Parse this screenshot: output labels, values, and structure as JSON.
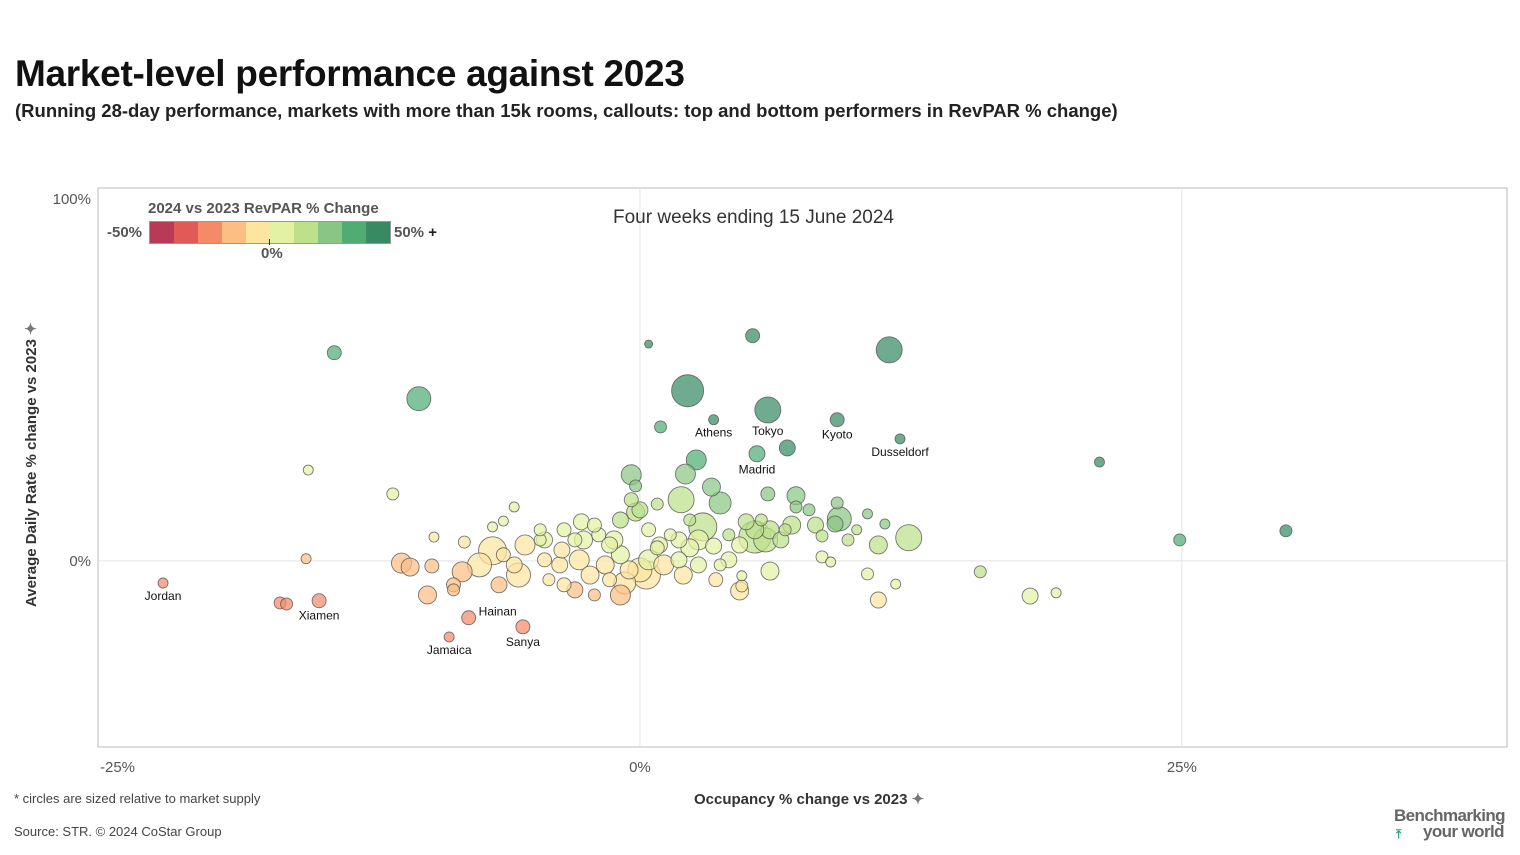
{
  "title": "Market-level performance against 2023",
  "subtitle": "(Running 28-day performance, markets with more than 15k rooms, callouts: top and bottom performers in RevPAR % change)",
  "footnote": "* circles are sized relative to market supply",
  "source": "Source: STR. © 2024 CoStar Group",
  "logo": {
    "line1": "Benchmarking",
    "line2": "your world"
  },
  "chart_data": {
    "type": "scatter",
    "panel_title": "Four weeks ending 15 June 2024",
    "xlabel": "Occupancy % change vs 2023",
    "ylabel": "Average Daily Rate % change vs 2023",
    "xlim": [
      -25,
      40
    ],
    "ylim": [
      -51.4,
      103
    ],
    "xticks": [
      {
        "v": -25,
        "label": "-25%"
      },
      {
        "v": 0,
        "label": "0%"
      },
      {
        "v": 25,
        "label": "25%"
      }
    ],
    "yticks": [
      {
        "v": 100,
        "label": "100%"
      },
      {
        "v": 0,
        "label": "0%"
      }
    ],
    "grid": true,
    "legend": {
      "title": "2024 vs 2023 RevPAR % Change",
      "min_label": "-50%",
      "max_label": "50%",
      "mid_label": "0%",
      "plus": "+",
      "placement": "top-left",
      "colors": [
        "#b93a57",
        "#e05a57",
        "#f48a68",
        "#fdbe84",
        "#fde5a0",
        "#e3f1a5",
        "#bde08a",
        "#8ac683",
        "#4fad74",
        "#378a62"
      ]
    },
    "point_fields": [
      "occupancy_change_pct",
      "adr_change_pct",
      "relative_supply"
    ],
    "labeled_points": [
      {
        "name": "Jordan",
        "x": -22.0,
        "y": -6.1,
        "s": 5
      },
      {
        "name": "Xiamen",
        "x": -14.8,
        "y": -11.0,
        "s": 7
      },
      {
        "name": "Hainan",
        "x": -7.9,
        "y": -15.7,
        "s": 7
      },
      {
        "name": "Jamaica",
        "x": -8.8,
        "y": -21.0,
        "s": 5
      },
      {
        "name": "Sanya",
        "x": -5.4,
        "y": -18.2,
        "s": 7
      },
      {
        "name": "Athens",
        "x": 3.4,
        "y": 39.0,
        "s": 5
      },
      {
        "name": "Tokyo",
        "x": 5.9,
        "y": 41.7,
        "s": 13
      },
      {
        "name": "Kyoto",
        "x": 9.1,
        "y": 39.0,
        "s": 7
      },
      {
        "name": "Dusseldorf",
        "x": 12.0,
        "y": 33.7,
        "s": 5
      },
      {
        "name": "Madrid",
        "x": 5.4,
        "y": 29.6,
        "s": 8
      }
    ],
    "points": [
      [
        -16.6,
        -11.6,
        6
      ],
      [
        -16.3,
        -11.9,
        6
      ],
      [
        -14.1,
        57.5,
        7
      ],
      [
        -10.2,
        44.8,
        12
      ],
      [
        -15.3,
        25.1,
        5
      ],
      [
        -11.4,
        18.5,
        6
      ],
      [
        -15.4,
        0.6,
        5
      ],
      [
        0.4,
        59.9,
        4
      ],
      [
        5.2,
        62.2,
        7
      ],
      [
        11.5,
        58.3,
        13
      ],
      [
        2.2,
        47.0,
        16
      ],
      [
        0.95,
        37.0,
        6
      ],
      [
        6.8,
        31.2,
        8
      ],
      [
        21.2,
        27.3,
        5
      ],
      [
        24.9,
        5.8,
        6
      ],
      [
        29.8,
        8.3,
        6
      ],
      [
        15.7,
        -3.0,
        6
      ],
      [
        18.0,
        -9.7,
        8
      ],
      [
        19.2,
        -8.8,
        5
      ],
      [
        11.0,
        -10.8,
        8
      ],
      [
        11.8,
        -6.4,
        5
      ],
      [
        10.5,
        -3.6,
        6
      ],
      [
        12.4,
        6.4,
        13
      ],
      [
        11.0,
        4.4,
        9
      ],
      [
        11.3,
        10.2,
        5
      ],
      [
        10.5,
        13.0,
        5
      ],
      [
        9.6,
        5.8,
        6
      ],
      [
        10.0,
        8.6,
        5
      ],
      [
        9.2,
        11.6,
        12
      ],
      [
        9.1,
        16.0,
        6
      ],
      [
        9.0,
        10.2,
        8
      ],
      [
        8.4,
        6.9,
        6
      ],
      [
        8.8,
        -0.3,
        5
      ],
      [
        8.4,
        1.1,
        6
      ],
      [
        8.1,
        9.9,
        8
      ],
      [
        7.8,
        14.1,
        6
      ],
      [
        7.2,
        18.0,
        9
      ],
      [
        7.2,
        14.9,
        6
      ],
      [
        5.9,
        18.5,
        7
      ],
      [
        6.0,
        -2.8,
        9
      ],
      [
        4.6,
        -8.3,
        9
      ],
      [
        4.7,
        -6.9,
        6
      ],
      [
        4.7,
        -4.1,
        5
      ],
      [
        3.5,
        -5.2,
        7
      ],
      [
        4.1,
        0.3,
        8
      ],
      [
        3.7,
        16.0,
        11
      ],
      [
        3.3,
        20.4,
        9
      ],
      [
        2.6,
        27.9,
        10
      ],
      [
        2.1,
        24.0,
        10
      ],
      [
        1.9,
        16.9,
        13
      ],
      [
        -0.4,
        23.8,
        10
      ],
      [
        -0.2,
        20.7,
        6
      ],
      [
        -0.4,
        16.9,
        7
      ],
      [
        0.8,
        15.7,
        6
      ],
      [
        -0.2,
        13.5,
        9
      ],
      [
        2.9,
        9.4,
        14
      ],
      [
        5.3,
        6.6,
        16
      ],
      [
        5.8,
        5.8,
        12
      ],
      [
        4.9,
        10.8,
        8
      ],
      [
        5.6,
        11.3,
        6
      ],
      [
        6.5,
        5.8,
        8
      ],
      [
        7.0,
        9.9,
        9
      ],
      [
        4.6,
        4.4,
        8
      ],
      [
        4.1,
        7.2,
        6
      ],
      [
        3.4,
        4.1,
        8
      ],
      [
        2.7,
        5.8,
        10
      ],
      [
        2.3,
        3.6,
        9
      ],
      [
        1.8,
        5.8,
        8
      ],
      [
        1.4,
        7.2,
        6
      ],
      [
        0.9,
        4.4,
        8
      ],
      [
        0.4,
        8.6,
        7
      ],
      [
        0.4,
        0.3,
        10
      ],
      [
        0.0,
        -2.5,
        12
      ],
      [
        0.3,
        -3.9,
        14
      ],
      [
        -0.7,
        -6.1,
        11
      ],
      [
        -0.5,
        -2.5,
        9
      ],
      [
        -0.9,
        1.7,
        9
      ],
      [
        -1.4,
        4.4,
        8
      ],
      [
        -1.9,
        7.2,
        7
      ],
      [
        -2.1,
        9.9,
        7
      ],
      [
        -2.7,
        10.8,
        8
      ],
      [
        -3.0,
        5.8,
        7
      ],
      [
        -2.8,
        0.3,
        10
      ],
      [
        -2.3,
        -3.9,
        9
      ],
      [
        -1.6,
        -1.1,
        9
      ],
      [
        -1.4,
        -5.2,
        7
      ],
      [
        -2.1,
        -9.4,
        6
      ],
      [
        -3.0,
        -8.0,
        8
      ],
      [
        -3.5,
        -6.6,
        7
      ],
      [
        -3.7,
        -1.1,
        8
      ],
      [
        -4.2,
        -5.2,
        6
      ],
      [
        -4.4,
        0.3,
        7
      ],
      [
        -4.6,
        5.8,
        6
      ],
      [
        -4.6,
        8.6,
        6
      ],
      [
        -5.3,
        4.4,
        10
      ],
      [
        -5.6,
        -3.9,
        12
      ],
      [
        -5.8,
        -1.1,
        8
      ],
      [
        -6.5,
        -6.6,
        8
      ],
      [
        -6.3,
        1.7,
        7
      ],
      [
        -6.8,
        2.8,
        14
      ],
      [
        -7.4,
        -1.1,
        12
      ],
      [
        -8.1,
        5.2,
        6
      ],
      [
        -8.2,
        -3.0,
        10
      ],
      [
        -8.6,
        -6.6,
        7
      ],
      [
        -8.6,
        -8.0,
        6
      ],
      [
        -9.6,
        -1.4,
        7
      ],
      [
        -10.6,
        -1.7,
        9
      ],
      [
        -11.0,
        -0.6,
        10
      ],
      [
        -9.8,
        -9.4,
        9
      ],
      [
        -9.5,
        6.6,
        5
      ],
      [
        -6.8,
        9.4,
        5
      ],
      [
        -6.3,
        11.0,
        5
      ],
      [
        -5.8,
        14.9,
        5
      ],
      [
        -4.4,
        5.8,
        8
      ],
      [
        -3.5,
        8.6,
        7
      ],
      [
        -0.9,
        11.3,
        8
      ],
      [
        0.0,
        14.1,
        8
      ],
      [
        2.3,
        11.3,
        6
      ],
      [
        1.1,
        -1.1,
        10
      ],
      [
        2.0,
        -3.9,
        9
      ],
      [
        2.7,
        -1.1,
        8
      ],
      [
        3.7,
        -1.1,
        6
      ],
      [
        0.8,
        3.6,
        7
      ],
      [
        -0.9,
        -9.4,
        10
      ],
      [
        1.8,
        0.3,
        8
      ],
      [
        -3.6,
        3.0,
        8
      ],
      [
        -2.6,
        5.8,
        9
      ],
      [
        -1.2,
        5.8,
        9
      ],
      [
        6.0,
        8.6,
        9
      ],
      [
        5.3,
        8.6,
        9
      ],
      [
        6.7,
        8.6,
        6
      ]
    ]
  }
}
